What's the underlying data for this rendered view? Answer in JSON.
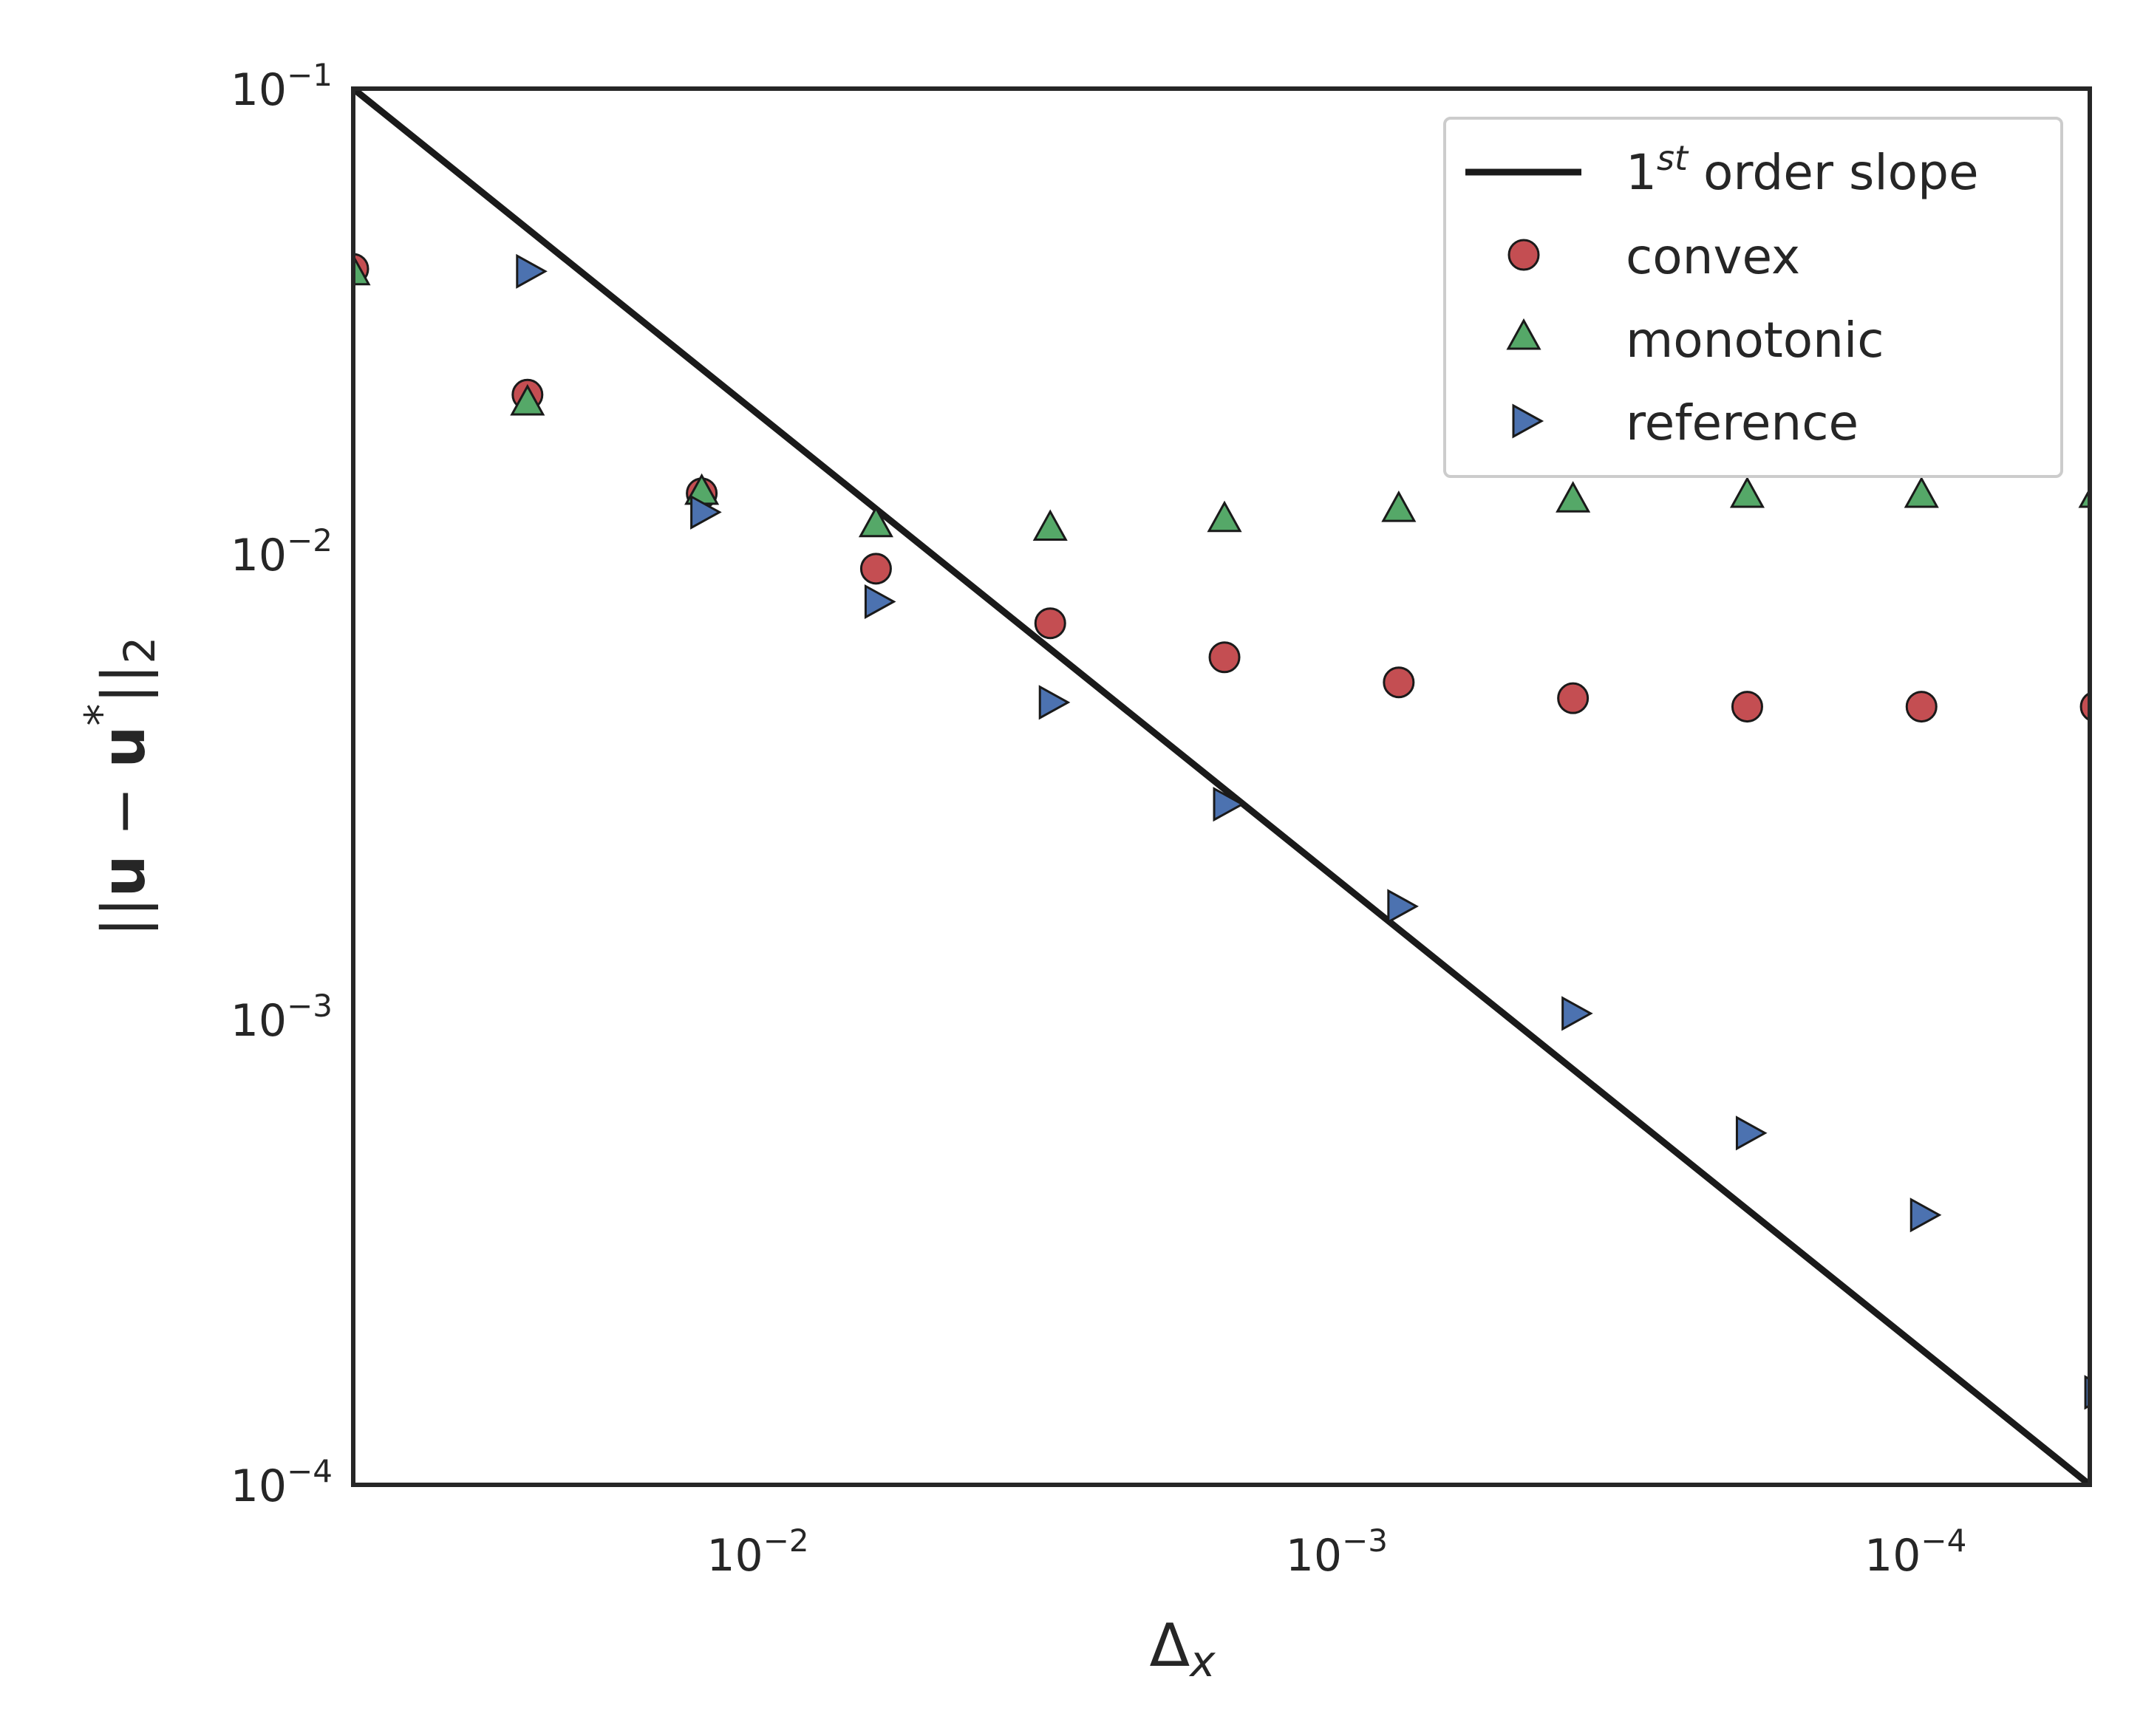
{
  "chart_data": {
    "type": "scatter",
    "xscale": "log",
    "yscale": "log",
    "x_inverted": true,
    "xlim": [
      0.05,
      5e-05
    ],
    "ylim": [
      0.0001,
      0.1
    ],
    "xlabel_base": "Δ",
    "xlabel_sub": "x",
    "ylabel": "||u − u*||₂",
    "ylabel_parts": {
      "open": "||",
      "u1": "u",
      "minus": " − ",
      "u2": "u",
      "star": "*",
      "close": "||",
      "sub": "2"
    },
    "x_ticks": [
      {
        "value": 0.01,
        "base": "10",
        "exp": "−2"
      },
      {
        "value": 0.001,
        "base": "10",
        "exp": "−3"
      },
      {
        "value": 0.0001,
        "base": "10",
        "exp": "−4"
      }
    ],
    "y_ticks": [
      {
        "value": 0.1,
        "base": "10",
        "exp": "−1"
      },
      {
        "value": 0.01,
        "base": "10",
        "exp": "−2"
      },
      {
        "value": 0.001,
        "base": "10",
        "exp": "−3"
      },
      {
        "value": 0.0001,
        "base": "10",
        "exp": "−4"
      }
    ],
    "grid": false,
    "legend_position": "top-right",
    "slope_line": {
      "name": "1st order slope",
      "label_base": "1",
      "label_sup": "st",
      "label_rest": " order slope",
      "color": "#1a1a1a",
      "x": [
        0.05,
        5e-05
      ],
      "y": [
        0.1,
        0.0001
      ]
    },
    "series": [
      {
        "name": "convex",
        "marker": "circle",
        "color": "#c44e52",
        "x": [
          0.05,
          0.025,
          0.0125,
          0.00625,
          0.003125,
          0.0015625,
          0.00078125,
          0.000390625,
          0.0001953125,
          9.76563e-05,
          4.88281e-05
        ],
        "y": [
          0.041,
          0.022,
          0.0135,
          0.0093,
          0.0071,
          0.006,
          0.0053,
          0.0049,
          0.0047,
          0.0047,
          0.0047
        ]
      },
      {
        "name": "monotonic",
        "marker": "triangle-up",
        "color": "#55a868",
        "x": [
          0.05,
          0.025,
          0.0125,
          0.00625,
          0.003125,
          0.0015625,
          0.00078125,
          0.000390625,
          0.0001953125,
          9.76563e-05,
          4.88281e-05
        ],
        "y": [
          0.04,
          0.021,
          0.0135,
          0.0115,
          0.0113,
          0.0118,
          0.0124,
          0.013,
          0.0133,
          0.0133,
          0.0133
        ]
      },
      {
        "name": "reference",
        "marker": "triangle-right",
        "color": "#4c72b0",
        "x": [
          0.05,
          0.025,
          0.0125,
          0.00625,
          0.003125,
          0.0015625,
          0.00078125,
          0.000390625,
          0.0001953125,
          9.76563e-05,
          4.88281e-05
        ],
        "y": [
          null,
          0.0405,
          0.0123,
          0.0079,
          0.0048,
          0.0029,
          0.00175,
          0.00103,
          0.00057,
          0.00038,
          0.000158
        ]
      }
    ]
  }
}
